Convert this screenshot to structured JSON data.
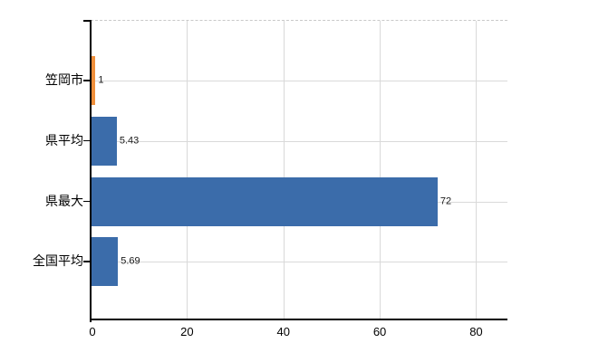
{
  "chart_data": {
    "type": "bar",
    "orientation": "horizontal",
    "title": "",
    "xlabel": "",
    "ylabel": "",
    "categories": [
      "笠岡市",
      "県平均",
      "県最大",
      "全国平均"
    ],
    "values": [
      1,
      5.43,
      72,
      5.69
    ],
    "value_labels": [
      "1",
      "5.43",
      "72",
      "5.69"
    ],
    "bar_colors": [
      "#ef8f3b",
      "#3b6caa",
      "#3b6caa",
      "#3b6caa"
    ],
    "xlim": [
      0,
      86.5
    ],
    "x_ticks": [
      0,
      20,
      40,
      60,
      80
    ],
    "x_tick_labels": [
      "0",
      "20",
      "40",
      "60",
      "80"
    ],
    "grid": true,
    "legend": "none",
    "colors": {
      "highlight_bar": "#ef8f3b",
      "default_bar": "#3b6caa",
      "gridline": "#d9d9d9",
      "top_border_dashed": "#c9c9c9",
      "axis": "#000000",
      "text": "#000000",
      "value_text": "#1a1a1a",
      "background": "#ffffff"
    }
  }
}
